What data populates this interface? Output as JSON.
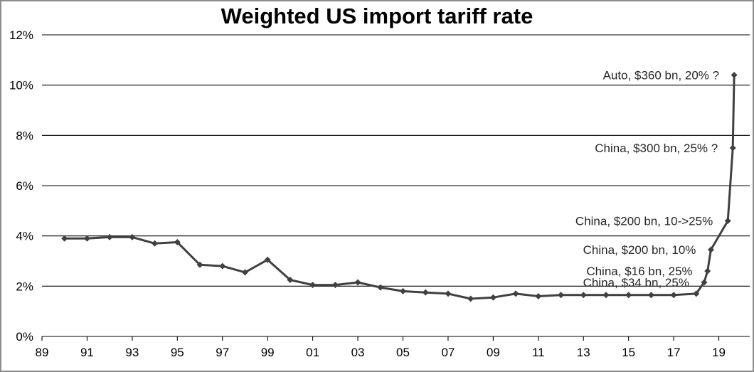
{
  "chart_data": {
    "type": "line",
    "title": "Weighted US import tariff rate",
    "xlabel": "",
    "ylabel": "",
    "grid": "horizontal",
    "legend": "none",
    "colors": {
      "series": "#404040",
      "gridline": "#000000",
      "frame_border": "#8d8d8d",
      "background": "#ffffff"
    },
    "x_axis": {
      "range": [
        1989,
        2020.37
      ],
      "tick_positions": [
        1989,
        1991,
        1993,
        1995,
        1997,
        1999,
        2001,
        2003,
        2005,
        2007,
        2009,
        2011,
        2013,
        2015,
        2017,
        2019
      ],
      "tick_labels": [
        "89",
        "91",
        "93",
        "95",
        "97",
        "99",
        "01",
        "03",
        "05",
        "07",
        "09",
        "11",
        "13",
        "15",
        "17",
        "19"
      ]
    },
    "y_axis": {
      "range": [
        0,
        12
      ],
      "tick_positions": [
        0,
        2,
        4,
        6,
        8,
        10,
        12
      ],
      "tick_labels": [
        "0%",
        "2%",
        "4%",
        "6%",
        "8%",
        "10%",
        "12%"
      ]
    },
    "series": [
      {
        "name": "Weighted US import tariff rate",
        "marker": "diamond",
        "points": [
          [
            1990,
            3.9
          ],
          [
            1991,
            3.9
          ],
          [
            1992,
            3.95
          ],
          [
            1993,
            3.95
          ],
          [
            1994,
            3.7
          ],
          [
            1995,
            3.75
          ],
          [
            1996,
            2.85
          ],
          [
            1997,
            2.8
          ],
          [
            1998,
            2.55
          ],
          [
            1999,
            3.05
          ],
          [
            2000,
            2.25
          ],
          [
            2001,
            2.05
          ],
          [
            2002,
            2.05
          ],
          [
            2003,
            2.15
          ],
          [
            2004,
            1.95
          ],
          [
            2005,
            1.8
          ],
          [
            2006,
            1.75
          ],
          [
            2007,
            1.7
          ],
          [
            2008,
            1.5
          ],
          [
            2009,
            1.55
          ],
          [
            2010,
            1.7
          ],
          [
            2011,
            1.6
          ],
          [
            2012,
            1.65
          ],
          [
            2013,
            1.65
          ],
          [
            2014,
            1.65
          ],
          [
            2015,
            1.65
          ],
          [
            2016,
            1.65
          ],
          [
            2017,
            1.65
          ],
          [
            2018,
            1.7
          ],
          [
            2018.35,
            2.15
          ],
          [
            2018.5,
            2.6
          ],
          [
            2018.65,
            3.45
          ],
          [
            2019.4,
            4.6
          ],
          [
            2019.62,
            7.5
          ],
          [
            2019.68,
            10.4
          ]
        ]
      }
    ],
    "annotations": [
      {
        "id": "annotation-auto-360bn",
        "text": "Auto, $360 bn, 20% ?",
        "x": 2019.68,
        "y": 10.4
      },
      {
        "id": "annotation-china-300bn",
        "text": "China, $300 bn, 25% ?",
        "x": 2019.62,
        "y": 7.5
      },
      {
        "id": "annotation-china-200bn-hike",
        "text": "China, $200 bn, 10->25%",
        "x": 2019.4,
        "y": 4.6
      },
      {
        "id": "annotation-china-200bn-10",
        "text": "China, $200 bn, 10%",
        "x": 2018.65,
        "y": 3.45
      },
      {
        "id": "annotation-china-16bn",
        "text": "China, $16 bn, 25%",
        "x": 2018.5,
        "y": 2.6
      },
      {
        "id": "annotation-china-34bn",
        "text": "China, $34 bn, 25%",
        "x": 2018.35,
        "y": 2.15
      }
    ]
  }
}
